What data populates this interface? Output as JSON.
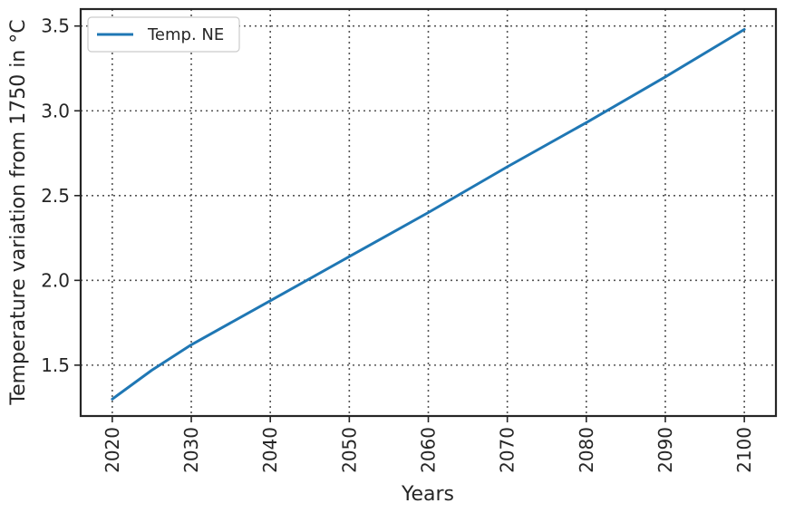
{
  "chart_data": {
    "type": "line",
    "title": "",
    "xlabel": "Years",
    "ylabel": "Temperature variation from 1750 in °C",
    "xlim": [
      2016,
      2104
    ],
    "ylim": [
      1.2,
      3.6
    ],
    "xticks": [
      2020,
      2030,
      2040,
      2050,
      2060,
      2070,
      2080,
      2090,
      2100
    ],
    "yticks": [
      1.5,
      2.0,
      2.5,
      3.0,
      3.5
    ],
    "xtick_labels": [
      "2020",
      "2030",
      "2040",
      "2050",
      "2060",
      "2070",
      "2080",
      "2090",
      "2100"
    ],
    "ytick_labels": [
      "1.5",
      "2.0",
      "2.5",
      "3.0",
      "3.5"
    ],
    "grid": true,
    "legend_position": "top-left",
    "series": [
      {
        "name": "Temp. NE",
        "color": "#1f77b4",
        "x": [
          2020,
          2025,
          2030,
          2040,
          2050,
          2060,
          2070,
          2080,
          2090,
          2100
        ],
        "y": [
          1.3,
          1.47,
          1.62,
          1.88,
          2.14,
          2.4,
          2.67,
          2.93,
          3.2,
          3.48
        ]
      }
    ]
  }
}
